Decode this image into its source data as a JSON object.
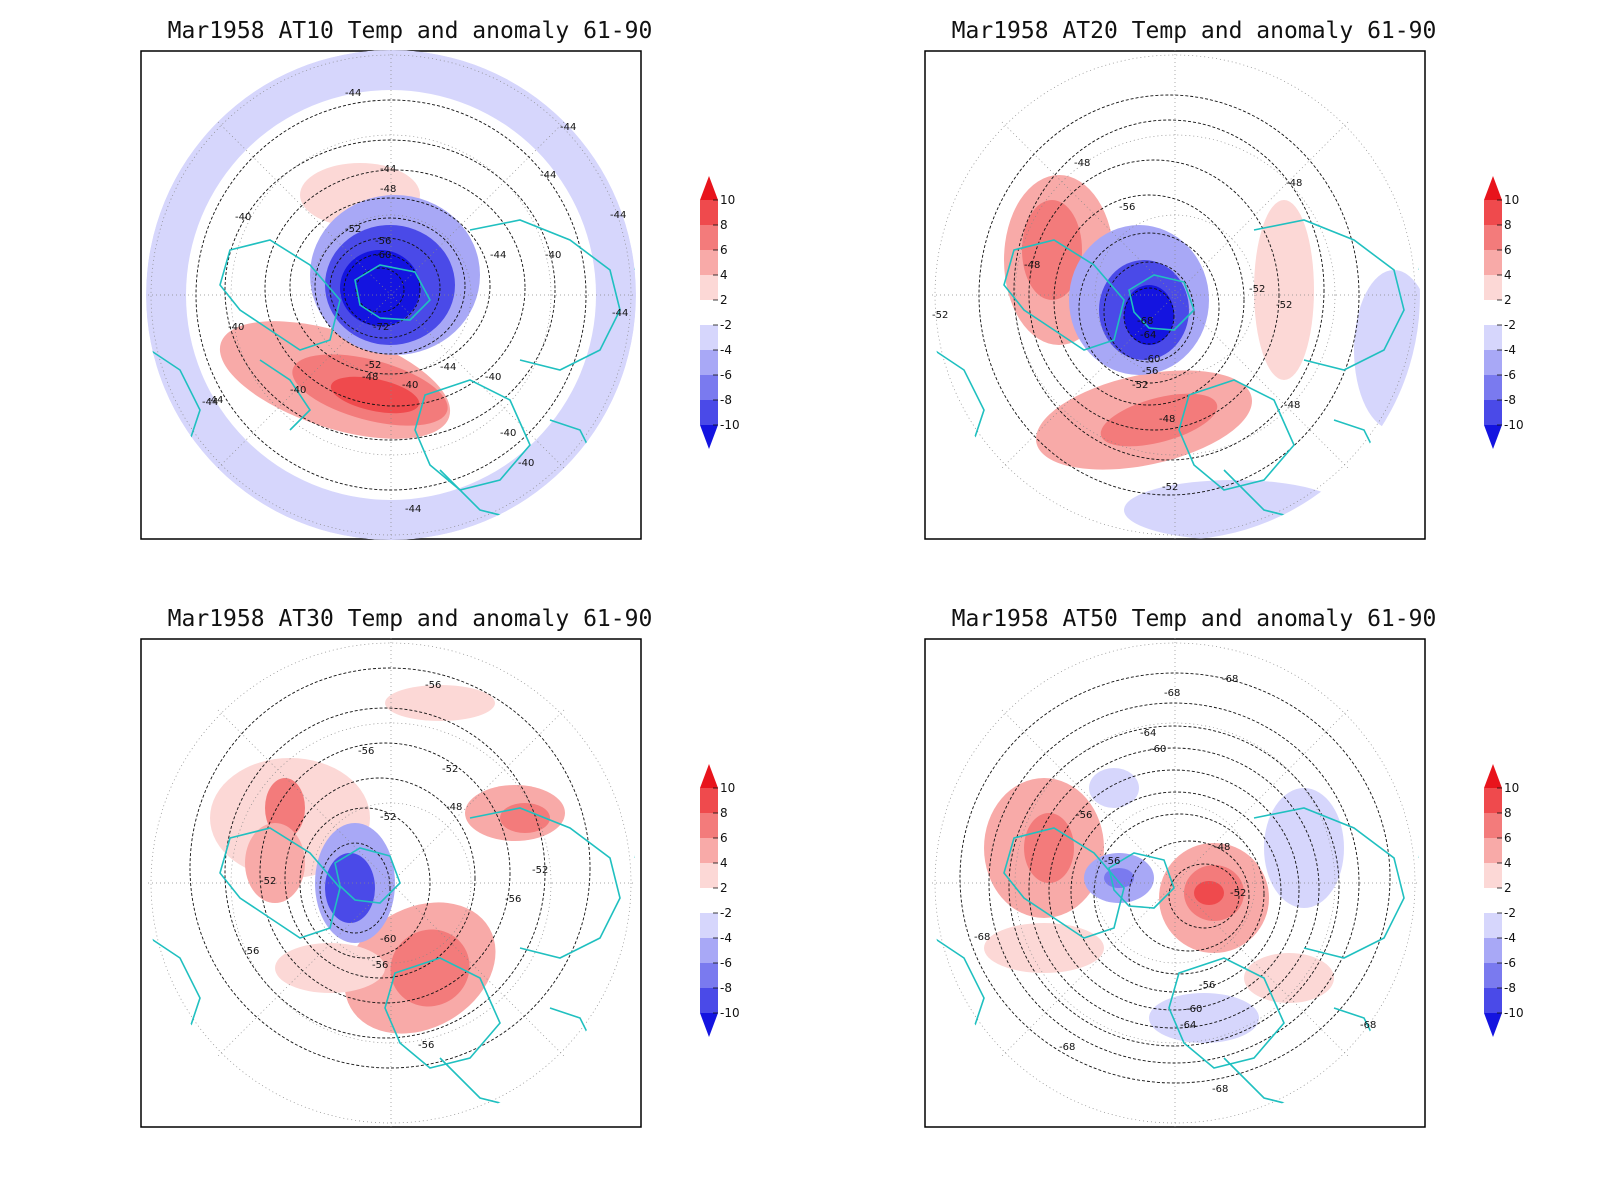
{
  "panels": [
    {
      "id": "p1",
      "title": "Mar1958 AT10 Temp and anomaly 61-90",
      "contour_labels": [
        "-44",
        "-44",
        "-44",
        "-44",
        "-40",
        "-48",
        "-52",
        "-56",
        "-60",
        "-72",
        "-52",
        "-48",
        "-40",
        "-40",
        "-44",
        "-40",
        "-40",
        "-44",
        "-40",
        "-44",
        "-44",
        "-40",
        "-40",
        "-44",
        "-44",
        "-44"
      ]
    },
    {
      "id": "p2",
      "title": "Mar1958 AT20 Temp and anomaly 61-90",
      "contour_labels": [
        "-48",
        "-48",
        "-56",
        "-48",
        "-68",
        "-64",
        "-60",
        "-56",
        "-52",
        "-48",
        "-52",
        "-52",
        "-48",
        "-52",
        "-52"
      ]
    },
    {
      "id": "p3",
      "title": "Mar1958 AT30 Temp and anomaly 61-90",
      "contour_labels": [
        "-56",
        "-56",
        "-52",
        "-48",
        "-52",
        "-52",
        "-60",
        "-56",
        "-56",
        "-52",
        "-56",
        "-56"
      ]
    },
    {
      "id": "p4",
      "title": "Mar1958 AT50 Temp and anomaly 61-90",
      "contour_labels": [
        "-68",
        "-68",
        "-64",
        "-60",
        "-56",
        "-56",
        "-48",
        "-52",
        "-56",
        "-60",
        "-64",
        "-68",
        "-68",
        "-68",
        "-68"
      ]
    }
  ],
  "colorbar": {
    "ticks": [
      "10",
      "8",
      "6",
      "4",
      "2",
      "-2",
      "-4",
      "-6",
      "-8",
      "-10"
    ],
    "colors": [
      "#e8141c",
      "#ef4a4d",
      "#f37b7b",
      "#f8aaa8",
      "#fcd8d6",
      "#ffffff",
      "#d6d6fc",
      "#a8a8f6",
      "#7a7aef",
      "#4a4ae8",
      "#1414e0"
    ]
  },
  "style": {
    "coast_color": "#20c0c0",
    "contour_color": "#111111",
    "grid_color": "#888888"
  }
}
